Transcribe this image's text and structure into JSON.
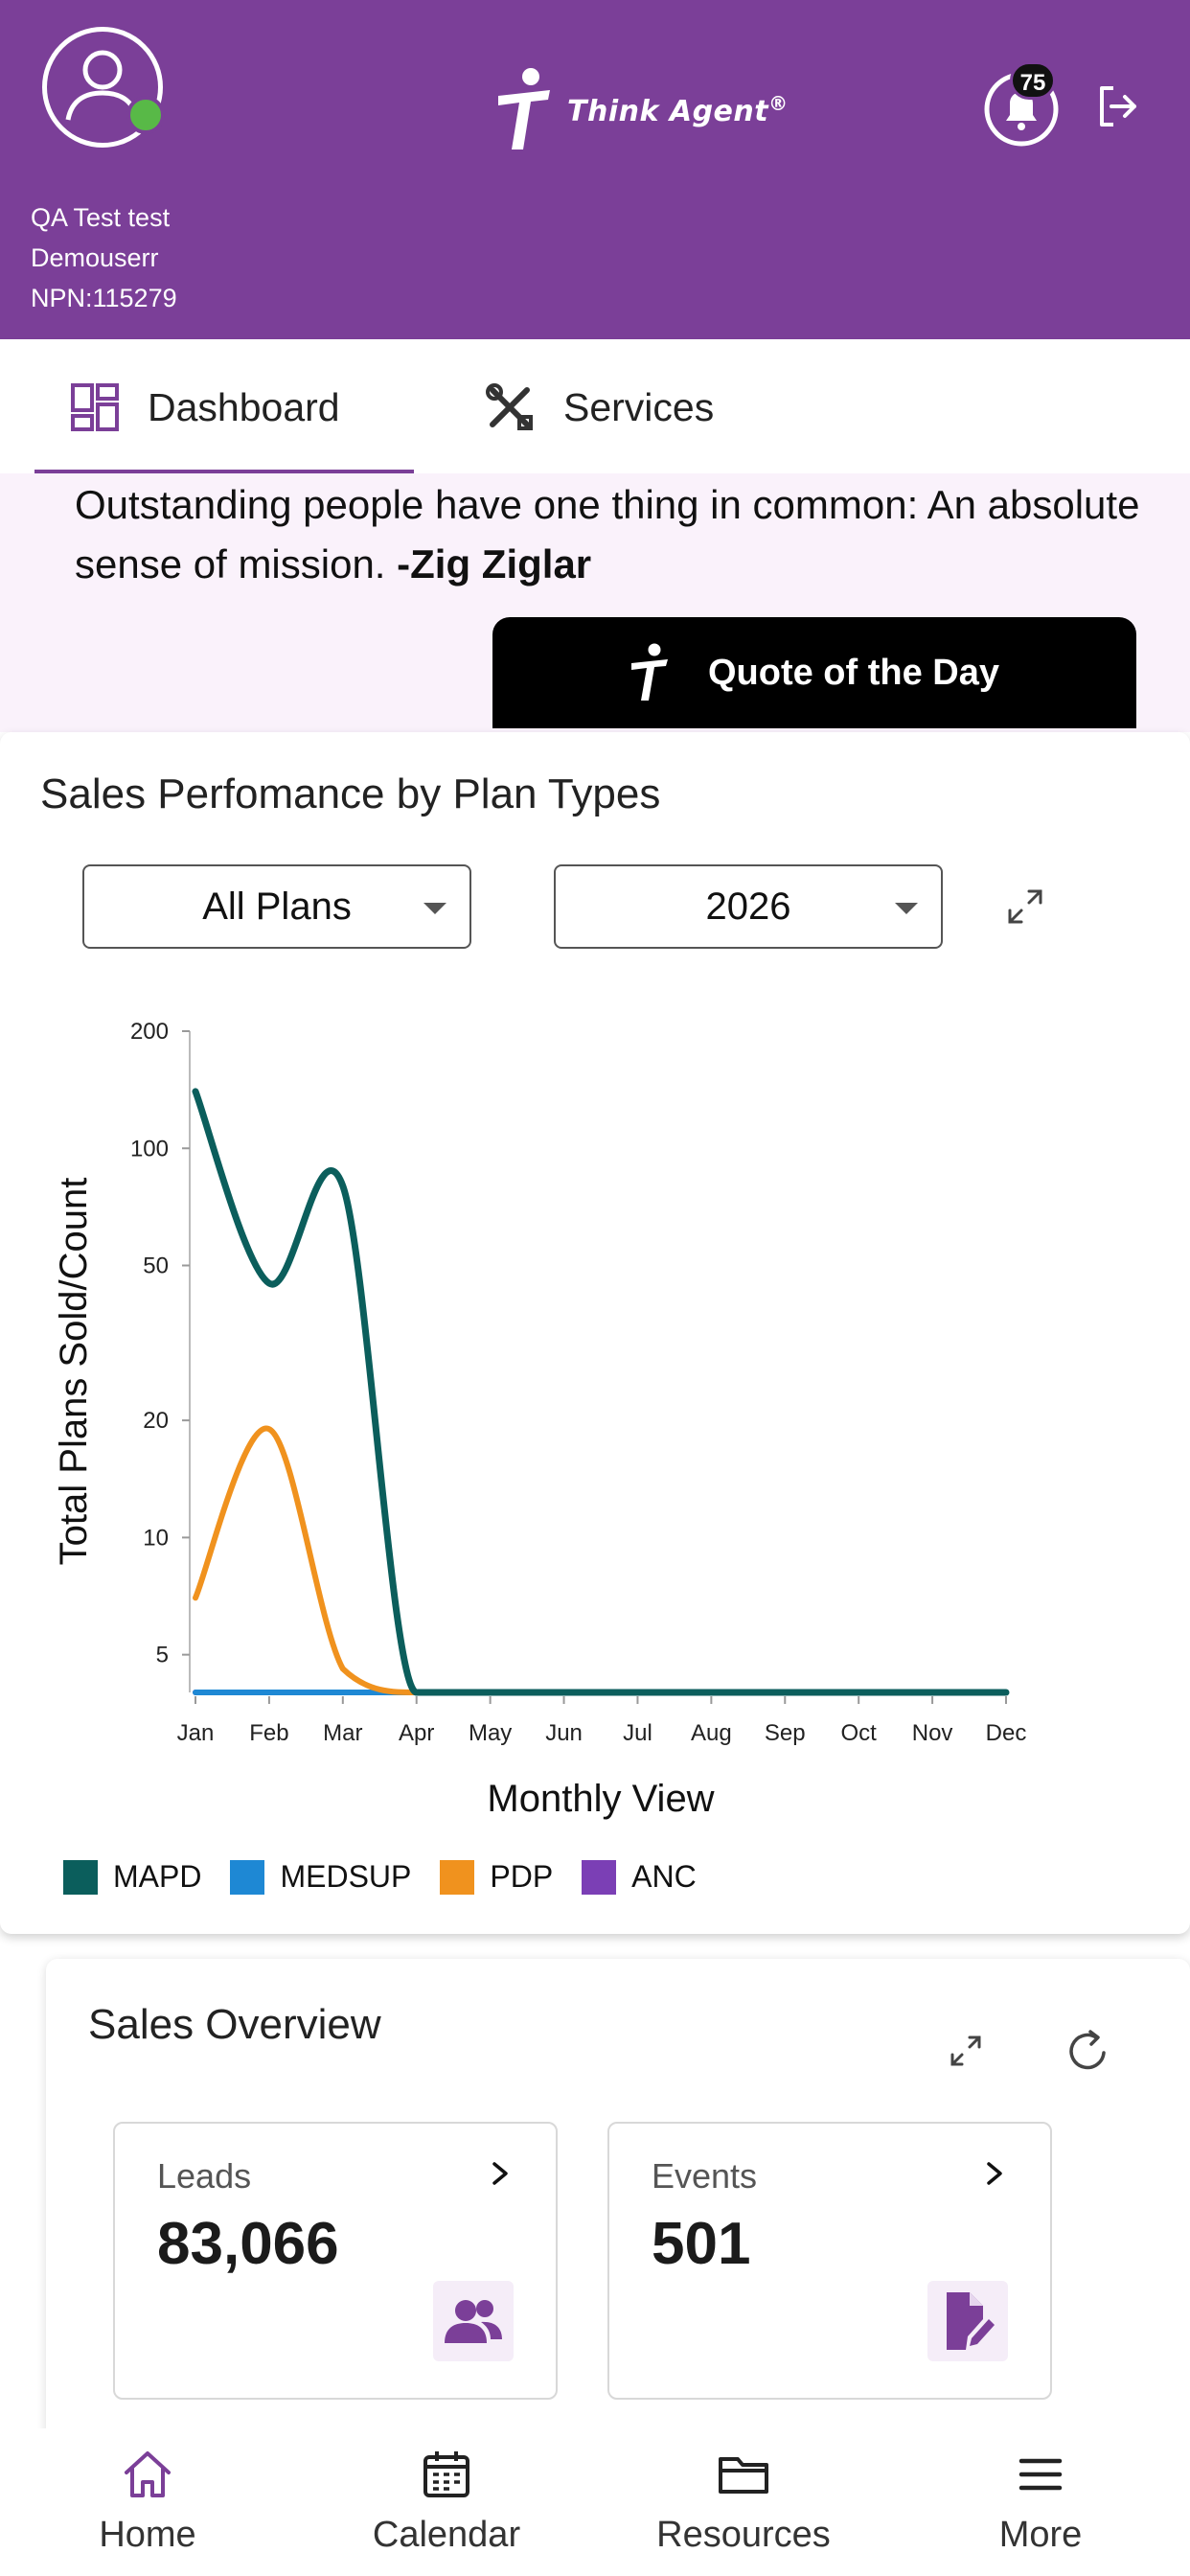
{
  "user": {
    "name": "QA Test test",
    "username": "Demouserr",
    "npn": "NPN:115279"
  },
  "brand": {
    "name": "Think Agent",
    "reg": "®"
  },
  "notifications": {
    "count": "75"
  },
  "tabs": [
    {
      "label": "Dashboard",
      "icon": "dashboard-icon",
      "active": true
    },
    {
      "label": "Services",
      "icon": "tools-icon",
      "active": false
    }
  ],
  "quote": {
    "text": "Outstanding people have one thing in common: An absolute sense of mission. ",
    "author": "-Zig Ziglar",
    "button_label": "Quote of the Day"
  },
  "sales_performance": {
    "title": "Sales Perfomance by Plan Types",
    "plan_filter": "All Plans",
    "year_filter": "2026"
  },
  "chart_data": {
    "type": "line",
    "title": "",
    "xlabel": "Monthly View",
    "ylabel": "Total Plans Sold/Count",
    "y_scale": "log",
    "ylim": [
      4,
      200
    ],
    "y_ticks": [
      5,
      10,
      20,
      50,
      100,
      200
    ],
    "categories": [
      "Jan",
      "Feb",
      "Mar",
      "Apr",
      "May",
      "Jun",
      "Jul",
      "Aug",
      "Sep",
      "Oct",
      "Nov",
      "Dec"
    ],
    "series": [
      {
        "name": "MAPD",
        "color": "#0b5e5c",
        "values": [
          140,
          45,
          80,
          4,
          4,
          4,
          4,
          4,
          4,
          4,
          4,
          4
        ]
      },
      {
        "name": "MEDSUP",
        "color": "#1e88d4",
        "values": [
          4,
          4,
          4,
          4,
          4,
          4,
          4,
          4,
          4,
          4,
          4,
          4
        ]
      },
      {
        "name": "PDP",
        "color": "#f0921e",
        "values": [
          7,
          19,
          4.6,
          4,
          4,
          4,
          4,
          4,
          4,
          4,
          4,
          4
        ]
      },
      {
        "name": "ANC",
        "color": "#7b3fb5",
        "values": [
          4,
          4,
          4,
          4,
          4,
          4,
          4,
          4,
          4,
          4,
          4,
          4
        ]
      }
    ],
    "legend_position": "bottom-left",
    "grid": false
  },
  "sales_overview": {
    "title": "Sales Overview",
    "stats": [
      {
        "label": "Leads",
        "value": "83,066",
        "icon": "people-icon"
      },
      {
        "label": "Events",
        "value": "501",
        "icon": "edit-document-icon"
      }
    ]
  },
  "bottom_nav": [
    {
      "label": "Home",
      "icon": "home-icon",
      "active": true
    },
    {
      "label": "Calendar",
      "icon": "calendar-icon",
      "active": false
    },
    {
      "label": "Resources",
      "icon": "folder-icon",
      "active": false
    },
    {
      "label": "More",
      "icon": "menu-icon",
      "active": false
    }
  ],
  "colors": {
    "brand_purple": "#7b3f98",
    "online_green": "#58b947",
    "quote_bg": "#faf2fb"
  }
}
